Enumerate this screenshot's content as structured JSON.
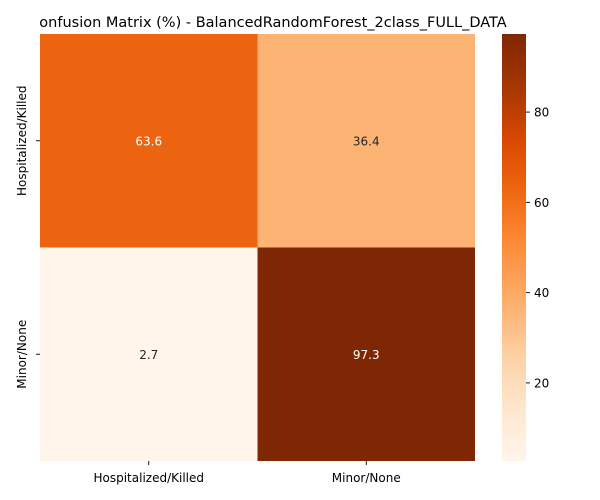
{
  "chart_data": {
    "type": "heatmap",
    "title": "onfusion Matrix (%) - BalancedRandomForest_2class_FULL_DATA",
    "xlabel": "",
    "ylabel": "",
    "x_categories": [
      "Hospitalized/Killed",
      "Minor/None"
    ],
    "y_categories": [
      "Hospitalized/Killed",
      "Minor/None"
    ],
    "values": [
      [
        63.6,
        36.4
      ],
      [
        2.7,
        97.3
      ]
    ],
    "cell_labels": [
      [
        "63.6",
        "36.4"
      ],
      [
        "2.7",
        "97.3"
      ]
    ],
    "colormap": "Oranges",
    "vmin": 2.7,
    "vmax": 97.3,
    "colorbar_ticks": [
      20,
      40,
      60,
      80
    ],
    "colorbar_tick_labels": [
      "20",
      "40",
      "60",
      "80"
    ],
    "grid": false,
    "legend": "colorbar-right"
  }
}
